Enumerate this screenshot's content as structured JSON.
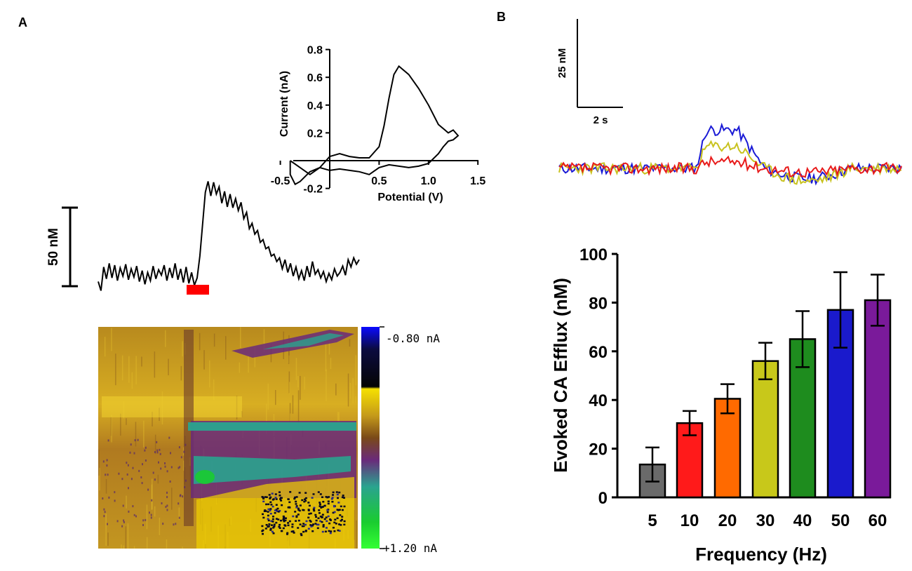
{
  "panels": {
    "a_label": "A",
    "b_label": "B"
  },
  "panel_a": {
    "scale_bar": {
      "label": "50 nM",
      "value": 50
    },
    "stimulus_color": "#ff0000",
    "trace": [
      {
        "t": 0.0,
        "c": 2
      },
      {
        "t": 0.3,
        "c": -8
      },
      {
        "t": 0.6,
        "c": 18
      },
      {
        "t": 0.9,
        "c": 5
      },
      {
        "t": 1.2,
        "c": 22
      },
      {
        "t": 1.5,
        "c": 6
      },
      {
        "t": 1.8,
        "c": 20
      },
      {
        "t": 2.1,
        "c": 3
      },
      {
        "t": 2.4,
        "c": 17
      },
      {
        "t": 2.7,
        "c": 8
      },
      {
        "t": 3.0,
        "c": 21
      },
      {
        "t": 3.3,
        "c": 4
      },
      {
        "t": 3.6,
        "c": 16
      },
      {
        "t": 3.9,
        "c": 7
      },
      {
        "t": 4.2,
        "c": 19
      },
      {
        "t": 4.5,
        "c": 2
      },
      {
        "t": 4.8,
        "c": 14
      },
      {
        "t": 5.1,
        "c": -1
      },
      {
        "t": 5.4,
        "c": 12
      },
      {
        "t": 5.7,
        "c": 3
      },
      {
        "t": 6.0,
        "c": 19
      },
      {
        "t": 6.3,
        "c": 5
      },
      {
        "t": 6.6,
        "c": 15
      },
      {
        "t": 6.9,
        "c": 9
      },
      {
        "t": 7.2,
        "c": 20
      },
      {
        "t": 7.5,
        "c": 3
      },
      {
        "t": 7.8,
        "c": 17
      },
      {
        "t": 8.1,
        "c": 6
      },
      {
        "t": 8.4,
        "c": 22
      },
      {
        "t": 8.7,
        "c": 4
      },
      {
        "t": 9.0,
        "c": 16
      },
      {
        "t": 9.3,
        "c": 1
      },
      {
        "t": 9.6,
        "c": 18
      },
      {
        "t": 9.9,
        "c": 0
      },
      {
        "t": 10.2,
        "c": 12
      },
      {
        "t": 10.5,
        "c": -2
      },
      {
        "t": 10.8,
        "c": 6
      },
      {
        "t": 11.1,
        "c": 30
      },
      {
        "t": 11.4,
        "c": 65
      },
      {
        "t": 11.7,
        "c": 100
      },
      {
        "t": 12.0,
        "c": 112
      },
      {
        "t": 12.3,
        "c": 96
      },
      {
        "t": 12.6,
        "c": 111
      },
      {
        "t": 12.9,
        "c": 98
      },
      {
        "t": 13.2,
        "c": 106
      },
      {
        "t": 13.5,
        "c": 88
      },
      {
        "t": 13.8,
        "c": 101
      },
      {
        "t": 14.1,
        "c": 84
      },
      {
        "t": 14.4,
        "c": 98
      },
      {
        "t": 14.7,
        "c": 83
      },
      {
        "t": 15.0,
        "c": 93
      },
      {
        "t": 15.3,
        "c": 80
      },
      {
        "t": 15.6,
        "c": 89
      },
      {
        "t": 15.9,
        "c": 71
      },
      {
        "t": 16.2,
        "c": 78
      },
      {
        "t": 16.5,
        "c": 60
      },
      {
        "t": 16.8,
        "c": 66
      },
      {
        "t": 17.1,
        "c": 54
      },
      {
        "t": 17.4,
        "c": 58
      },
      {
        "t": 17.7,
        "c": 45
      },
      {
        "t": 18.0,
        "c": 48
      },
      {
        "t": 18.3,
        "c": 38
      },
      {
        "t": 18.6,
        "c": 40
      },
      {
        "t": 18.9,
        "c": 30
      },
      {
        "t": 19.2,
        "c": 32
      },
      {
        "t": 19.5,
        "c": 24
      },
      {
        "t": 19.8,
        "c": 28
      },
      {
        "t": 20.1,
        "c": 16
      },
      {
        "t": 20.4,
        "c": 26
      },
      {
        "t": 20.7,
        "c": 12
      },
      {
        "t": 21.0,
        "c": 22
      },
      {
        "t": 21.3,
        "c": 8
      },
      {
        "t": 21.6,
        "c": 18
      },
      {
        "t": 21.9,
        "c": 5
      },
      {
        "t": 22.2,
        "c": 14
      },
      {
        "t": 22.5,
        "c": 3
      },
      {
        "t": 22.8,
        "c": 19
      },
      {
        "t": 23.1,
        "c": 7
      },
      {
        "t": 23.4,
        "c": 24
      },
      {
        "t": 23.7,
        "c": 10
      },
      {
        "t": 24.0,
        "c": 15
      },
      {
        "t": 24.3,
        "c": 6
      },
      {
        "t": 24.6,
        "c": 13
      },
      {
        "t": 24.9,
        "c": 2
      },
      {
        "t": 25.2,
        "c": 11
      },
      {
        "t": 25.5,
        "c": 4
      },
      {
        "t": 25.8,
        "c": 16
      },
      {
        "t": 26.1,
        "c": 8
      },
      {
        "t": 26.4,
        "c": 12
      },
      {
        "t": 26.7,
        "c": 19
      },
      {
        "t": 27.0,
        "c": 9
      },
      {
        "t": 27.3,
        "c": 26
      },
      {
        "t": 27.6,
        "c": 18
      },
      {
        "t": 27.9,
        "c": 28
      },
      {
        "t": 28.2,
        "c": 21
      },
      {
        "t": 28.5,
        "c": 26
      }
    ],
    "colorbar": {
      "top_label": "-0.80  nA",
      "bottom_label": "+1.20  nA",
      "top_value": -0.8,
      "bottom_value": 1.2,
      "colors": [
        "#0a0aff",
        "#0b0b40",
        "#040404",
        "#f5e000",
        "#c59a1a",
        "#7a4a18",
        "#6a2a7a",
        "#2aa38f",
        "#1acc30",
        "#33ff33"
      ]
    }
  },
  "inset_cv": {
    "type": "line",
    "xlabel": "Potential (V)",
    "ylabel": "Current (nA)",
    "xlim": [
      -0.5,
      1.5
    ],
    "ylim": [
      -0.2,
      0.8
    ],
    "xticks": [
      -0.5,
      0.5,
      1.0,
      1.5
    ],
    "xtick_labels": [
      "-0.5",
      "0.5",
      "1.0",
      "1.5"
    ],
    "yticks": [
      -0.2,
      0.2,
      0.4,
      0.6,
      0.8
    ],
    "ytick_labels": [
      "-0.2",
      "0.2",
      "0.4",
      "0.6",
      "0.8"
    ],
    "curve": [
      [
        -0.4,
        0.0
      ],
      [
        -0.3,
        -0.05
      ],
      [
        -0.2,
        -0.1
      ],
      [
        -0.1,
        -0.05
      ],
      [
        0.0,
        0.03
      ],
      [
        0.1,
        0.05
      ],
      [
        0.2,
        0.03
      ],
      [
        0.3,
        0.02
      ],
      [
        0.4,
        0.02
      ],
      [
        0.5,
        0.1
      ],
      [
        0.55,
        0.25
      ],
      [
        0.6,
        0.45
      ],
      [
        0.65,
        0.62
      ],
      [
        0.7,
        0.68
      ],
      [
        0.8,
        0.62
      ],
      [
        0.9,
        0.52
      ],
      [
        1.0,
        0.4
      ],
      [
        1.1,
        0.26
      ],
      [
        1.2,
        0.2
      ],
      [
        1.25,
        0.22
      ],
      [
        1.3,
        0.18
      ],
      [
        1.25,
        0.15
      ],
      [
        1.2,
        0.14
      ],
      [
        1.15,
        0.1
      ],
      [
        1.1,
        0.05
      ],
      [
        1.0,
        -0.02
      ],
      [
        0.9,
        -0.04
      ],
      [
        0.8,
        -0.05
      ],
      [
        0.7,
        -0.04
      ],
      [
        0.6,
        -0.03
      ],
      [
        0.5,
        -0.05
      ],
      [
        0.4,
        -0.1
      ],
      [
        0.3,
        -0.08
      ],
      [
        0.2,
        -0.07
      ],
      [
        0.1,
        -0.06
      ],
      [
        0.0,
        -0.07
      ],
      [
        -0.1,
        -0.05
      ],
      [
        -0.2,
        -0.08
      ],
      [
        -0.3,
        -0.15
      ],
      [
        -0.35,
        -0.17
      ],
      [
        -0.4,
        -0.1
      ],
      [
        -0.4,
        0.0
      ]
    ]
  },
  "panel_b_traces": {
    "scale_y": {
      "label": "25 nM",
      "value": 25
    },
    "scale_x": {
      "label": "2 s",
      "value": 2
    },
    "series": [
      {
        "name": "blue",
        "color": "#1a1ad6",
        "peak": 105,
        "undershoot": -28,
        "seed": 11
      },
      {
        "name": "yellow",
        "color": "#c8c21e",
        "peak": 60,
        "undershoot": -35,
        "seed": 23
      },
      {
        "name": "red",
        "color": "#e81a1a",
        "peak": 18,
        "undershoot": -10,
        "seed": 37
      }
    ]
  },
  "chart_data": {
    "type": "bar",
    "categories": [
      "5",
      "10",
      "20",
      "30",
      "40",
      "50",
      "60"
    ],
    "values": [
      13.5,
      30.5,
      40.5,
      56,
      65,
      77,
      81
    ],
    "errors": [
      7,
      5,
      6,
      7.5,
      11.5,
      15.5,
      10.5
    ],
    "colors": [
      "#6a6a6a",
      "#ff1a1a",
      "#ff6a00",
      "#c8c81a",
      "#1e8c1e",
      "#1a1acc",
      "#7a1a9a"
    ],
    "title": "",
    "xlabel": "Frequency (Hz)",
    "ylabel": "Evoked CA Efflux (nM)",
    "ylim": [
      0,
      100
    ],
    "yticks": [
      0,
      20,
      40,
      60,
      80,
      100
    ],
    "ytick_labels": [
      "0",
      "20",
      "40",
      "60",
      "80",
      "100"
    ]
  }
}
